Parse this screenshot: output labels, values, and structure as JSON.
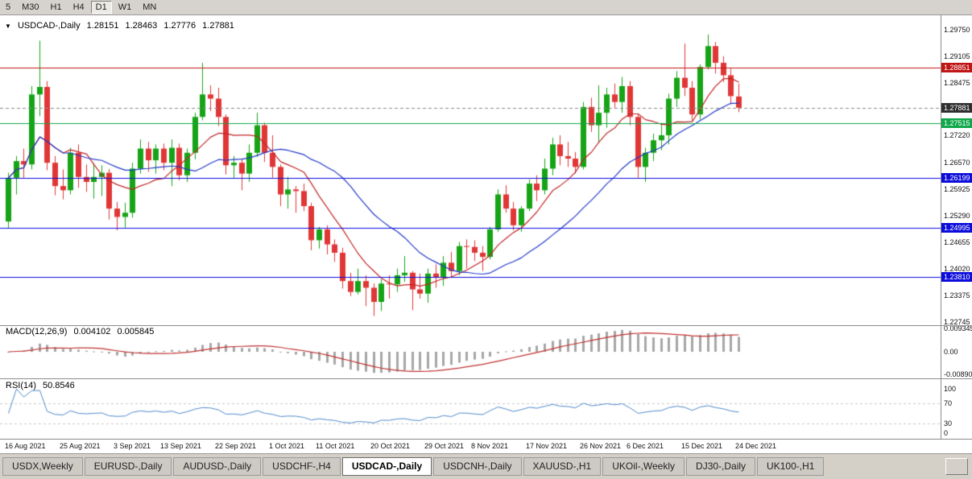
{
  "icons": {
    "one_click_arrow": "▼"
  },
  "toolbar": {
    "timeframe_buttons": [
      "5",
      "M30",
      "H1",
      "H4",
      "D1",
      "W1",
      "MN"
    ],
    "active_timeframe": "D1"
  },
  "chart": {
    "title": {
      "symbol": "USDCAD-,Daily",
      "open": "1.28151",
      "high": "1.28463",
      "low": "1.27776",
      "close": "1.27881"
    },
    "price_axis_labels": [
      "1.29750",
      "1.29105",
      "1.28475",
      "1.27220",
      "1.26570",
      "1.25925",
      "1.25290",
      "1.24655",
      "1.24020",
      "1.23375",
      "1.22745"
    ],
    "price_tags": [
      {
        "text": "1.28851",
        "color": "#c01515"
      },
      {
        "text": "1.27881",
        "color": "#2f2f2f"
      },
      {
        "text": "1.27515",
        "color": "#10a74a"
      },
      {
        "text": "1.26199",
        "color": "#0b0bdb"
      },
      {
        "text": "1.24995",
        "color": "#0b0bdb"
      },
      {
        "text": "1.23810",
        "color": "#0b0bdb"
      }
    ],
    "hlines": [
      {
        "price": 1.28851,
        "color": "#c01515"
      },
      {
        "price": 1.27515,
        "color": "#10a74a"
      },
      {
        "price": 1.26199,
        "color": "#0b0bdb"
      },
      {
        "price": 1.24995,
        "color": "#0b0bdb"
      },
      {
        "price": 1.2381,
        "color": "#0b0bdb"
      }
    ],
    "bid_line": {
      "price": 1.27881,
      "color": "#8a8a8a"
    }
  },
  "macd_panel": {
    "label": "MACD(12,26,9)",
    "main_value": "0.004102",
    "signal_value": "0.005845",
    "axis_labels": [
      "0.009345",
      "0.00",
      "-0.00890"
    ],
    "params": {
      "fast": 12,
      "slow": 26,
      "signal": 9
    },
    "hist_color": "#a6a6a6",
    "signal_color": "#c03030"
  },
  "rsi_panel": {
    "label": "RSI(14)",
    "value": "50.8546",
    "period": 14,
    "axis_labels": [
      "100",
      "70",
      "30",
      "0"
    ],
    "levels": [
      70,
      30
    ],
    "line_color": "#4f88c9",
    "level_color": "#c8c8c8"
  },
  "chart_data": {
    "type": "candlestick",
    "symbol": "USDCAD-",
    "timeframe": "Daily",
    "ohlc_format": [
      "open",
      "high",
      "low",
      "close"
    ],
    "y_range": [
      1.2266,
      1.301
    ],
    "up_color": "#16a416",
    "down_color": "#e03636",
    "moving_averages": [
      {
        "period": 8,
        "color": "#c22424"
      },
      {
        "period": 20,
        "color": "#2038c8"
      }
    ],
    "x_labels": [
      {
        "i": 0,
        "label": "16 Aug 2021"
      },
      {
        "i": 7,
        "label": "25 Aug 2021"
      },
      {
        "i": 14,
        "label": "3 Sep 2021"
      },
      {
        "i": 20,
        "label": "13 Sep 2021"
      },
      {
        "i": 27,
        "label": "22 Sep 2021"
      },
      {
        "i": 34,
        "label": "1 Oct 2021"
      },
      {
        "i": 40,
        "label": "11 Oct 2021"
      },
      {
        "i": 47,
        "label": "20 Oct 2021"
      },
      {
        "i": 54,
        "label": "29 Oct 2021"
      },
      {
        "i": 60,
        "label": "8 Nov 2021"
      },
      {
        "i": 67,
        "label": "17 Nov 2021"
      },
      {
        "i": 74,
        "label": "26 Nov 2021"
      },
      {
        "i": 80,
        "label": "6 Dec 2021"
      },
      {
        "i": 87,
        "label": "15 Dec 2021"
      },
      {
        "i": 94,
        "label": "24 Dec 2021"
      }
    ],
    "candles": [
      [
        1.2515,
        1.2632,
        1.25,
        1.262
      ],
      [
        1.262,
        1.2672,
        1.258,
        1.266
      ],
      [
        1.266,
        1.269,
        1.2618,
        1.2652
      ],
      [
        1.2652,
        1.284,
        1.264,
        1.282
      ],
      [
        1.282,
        1.2949,
        1.2768,
        1.2838
      ],
      [
        1.2838,
        1.2852,
        1.2638,
        1.2656
      ],
      [
        1.2656,
        1.2672,
        1.2578,
        1.26
      ],
      [
        1.26,
        1.264,
        1.2568,
        1.259
      ],
      [
        1.259,
        1.2692,
        1.258,
        1.268
      ],
      [
        1.268,
        1.27,
        1.2596,
        1.2622
      ],
      [
        1.2622,
        1.2652,
        1.2586,
        1.261
      ],
      [
        1.261,
        1.2655,
        1.257,
        1.2622
      ],
      [
        1.2622,
        1.265,
        1.2576,
        1.2632
      ],
      [
        1.2632,
        1.2641,
        1.252,
        1.2546
      ],
      [
        1.2546,
        1.2562,
        1.2494,
        1.2526
      ],
      [
        1.2526,
        1.256,
        1.25,
        1.2536
      ],
      [
        1.2536,
        1.2656,
        1.2524,
        1.2642
      ],
      [
        1.2642,
        1.2712,
        1.263,
        1.269
      ],
      [
        1.269,
        1.2706,
        1.2634,
        1.2662
      ],
      [
        1.2662,
        1.27,
        1.263,
        1.269
      ],
      [
        1.269,
        1.2702,
        1.2638,
        1.2656
      ],
      [
        1.2656,
        1.2712,
        1.26,
        1.2692
      ],
      [
        1.2692,
        1.2702,
        1.2614,
        1.2626
      ],
      [
        1.2626,
        1.269,
        1.261,
        1.268
      ],
      [
        1.268,
        1.2776,
        1.2664,
        1.2766
      ],
      [
        1.2766,
        1.2896,
        1.2758,
        1.282
      ],
      [
        1.282,
        1.2842,
        1.278,
        1.281
      ],
      [
        1.281,
        1.2836,
        1.2744,
        1.2766
      ],
      [
        1.2766,
        1.2772,
        1.2628,
        1.265
      ],
      [
        1.265,
        1.2672,
        1.2618,
        1.2656
      ],
      [
        1.2656,
        1.2666,
        1.259,
        1.263
      ],
      [
        1.263,
        1.27,
        1.261,
        1.268
      ],
      [
        1.268,
        1.2776,
        1.267,
        1.2746
      ],
      [
        1.2746,
        1.2752,
        1.2658,
        1.268
      ],
      [
        1.268,
        1.2722,
        1.262,
        1.2646
      ],
      [
        1.2646,
        1.2652,
        1.2552,
        1.258
      ],
      [
        1.258,
        1.2622,
        1.2546,
        1.2592
      ],
      [
        1.2592,
        1.26,
        1.2536,
        1.2588
      ],
      [
        1.2588,
        1.2606,
        1.254,
        1.2552
      ],
      [
        1.2552,
        1.256,
        1.2446,
        1.247
      ],
      [
        1.247,
        1.2502,
        1.245,
        1.2496
      ],
      [
        1.2496,
        1.2506,
        1.2436,
        1.246
      ],
      [
        1.246,
        1.2472,
        1.2418,
        1.244
      ],
      [
        1.244,
        1.2452,
        1.2354,
        1.2372
      ],
      [
        1.2372,
        1.2392,
        1.2336,
        1.2346
      ],
      [
        1.2346,
        1.2402,
        1.234,
        1.2372
      ],
      [
        1.2372,
        1.2386,
        1.2312,
        1.2356
      ],
      [
        1.2356,
        1.2366,
        1.2288,
        1.2322
      ],
      [
        1.2322,
        1.2376,
        1.23,
        1.2366
      ],
      [
        1.2366,
        1.2386,
        1.233,
        1.2364
      ],
      [
        1.2364,
        1.2402,
        1.2346,
        1.2386
      ],
      [
        1.2386,
        1.2432,
        1.237,
        1.2392
      ],
      [
        1.2392,
        1.2396,
        1.2302,
        1.2352
      ],
      [
        1.2352,
        1.239,
        1.233,
        1.2342
      ],
      [
        1.2342,
        1.2402,
        1.232,
        1.239
      ],
      [
        1.239,
        1.2412,
        1.2356,
        1.2382
      ],
      [
        1.2382,
        1.2432,
        1.236,
        1.2416
      ],
      [
        1.2416,
        1.2442,
        1.238,
        1.2396
      ],
      [
        1.2396,
        1.2466,
        1.2386,
        1.2456
      ],
      [
        1.2456,
        1.2472,
        1.2402,
        1.2454
      ],
      [
        1.2454,
        1.247,
        1.242,
        1.244
      ],
      [
        1.244,
        1.2456,
        1.2396,
        1.243
      ],
      [
        1.243,
        1.2502,
        1.2424,
        1.2496
      ],
      [
        1.2496,
        1.2592,
        1.249,
        1.258
      ],
      [
        1.258,
        1.2602,
        1.2536,
        1.2546
      ],
      [
        1.2546,
        1.2562,
        1.2494,
        1.2506
      ],
      [
        1.2506,
        1.2552,
        1.249,
        1.2546
      ],
      [
        1.2546,
        1.2616,
        1.254,
        1.2606
      ],
      [
        1.2606,
        1.2626,
        1.2564,
        1.259
      ],
      [
        1.259,
        1.2666,
        1.258,
        1.2642
      ],
      [
        1.2642,
        1.2716,
        1.2626,
        1.27
      ],
      [
        1.27,
        1.2722,
        1.265,
        1.2672
      ],
      [
        1.2672,
        1.2706,
        1.2646,
        1.2666
      ],
      [
        1.2666,
        1.2682,
        1.263,
        1.2646
      ],
      [
        1.2646,
        1.2802,
        1.264,
        1.279
      ],
      [
        1.279,
        1.2812,
        1.273,
        1.2746
      ],
      [
        1.2746,
        1.2842,
        1.2706,
        1.2776
      ],
      [
        1.2776,
        1.2836,
        1.274,
        1.282
      ],
      [
        1.282,
        1.2846,
        1.2786,
        1.2802
      ],
      [
        1.2802,
        1.2862,
        1.2776,
        1.284
      ],
      [
        1.284,
        1.2852,
        1.2746,
        1.2766
      ],
      [
        1.2766,
        1.2772,
        1.262,
        1.2646
      ],
      [
        1.2646,
        1.2692,
        1.261,
        1.268
      ],
      [
        1.268,
        1.2726,
        1.266,
        1.271
      ],
      [
        1.271,
        1.2752,
        1.2686,
        1.2722
      ],
      [
        1.2722,
        1.2822,
        1.27,
        1.281
      ],
      [
        1.281,
        1.2876,
        1.279,
        1.286
      ],
      [
        1.286,
        1.2942,
        1.2816,
        1.2836
      ],
      [
        1.2836,
        1.2852,
        1.2756,
        1.2772
      ],
      [
        1.2772,
        1.2892,
        1.276,
        1.2886
      ],
      [
        1.2886,
        1.2964,
        1.288,
        1.2936
      ],
      [
        1.2936,
        1.2946,
        1.287,
        1.2896
      ],
      [
        1.2896,
        1.2912,
        1.285,
        1.2866
      ],
      [
        1.2866,
        1.2882,
        1.2796,
        1.2816
      ],
      [
        1.28151,
        1.28463,
        1.27776,
        1.27881
      ]
    ]
  },
  "tabs": [
    {
      "label": "USDX,Weekly",
      "active": false
    },
    {
      "label": "EURUSD-,Daily",
      "active": false
    },
    {
      "label": "AUDUSD-,Daily",
      "active": false
    },
    {
      "label": "USDCHF-,H4",
      "active": false
    },
    {
      "label": "USDCAD-,Daily",
      "active": true
    },
    {
      "label": "USDCNH-,Daily",
      "active": false
    },
    {
      "label": "XAUUSD-,H1",
      "active": false
    },
    {
      "label": "UKOil-,Weekly",
      "active": false
    },
    {
      "label": "DJ30-,Daily",
      "active": false
    },
    {
      "label": "UK100-,H1",
      "active": false
    }
  ]
}
